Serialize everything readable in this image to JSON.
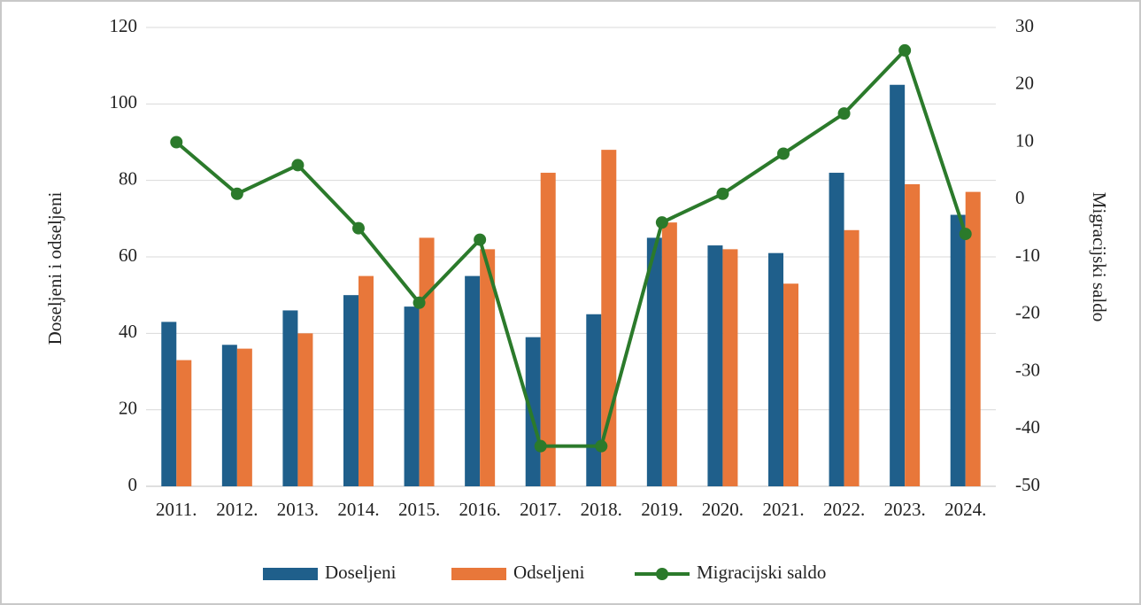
{
  "chart_data": {
    "type": "combo",
    "categories": [
      "2011.",
      "2012.",
      "2013.",
      "2014.",
      "2015.",
      "2016.",
      "2017.",
      "2018.",
      "2019.",
      "2020.",
      "2021.",
      "2022.",
      "2023.",
      "2024."
    ],
    "y_label": "Doseljeni i odseljeni",
    "y2_label": "Migracijski saldo",
    "ylim": [
      0,
      120
    ],
    "yticks": [
      0,
      20,
      40,
      60,
      80,
      100,
      120
    ],
    "y2lim": [
      -50,
      30
    ],
    "y2ticks": [
      -50,
      -40,
      -30,
      -20,
      -10,
      0,
      10,
      20,
      30
    ],
    "grid": true,
    "legend": "bottom",
    "series": [
      {
        "name": "Doseljeni",
        "type": "bar",
        "color": "#1f5f8b",
        "values": [
          43,
          37,
          46,
          50,
          47,
          55,
          39,
          45,
          65,
          63,
          61,
          82,
          105,
          71
        ]
      },
      {
        "name": "Odseljeni",
        "type": "bar",
        "color": "#e8773a",
        "values": [
          33,
          36,
          40,
          55,
          65,
          62,
          82,
          88,
          69,
          62,
          53,
          67,
          79,
          77
        ]
      },
      {
        "name": "Migracijski saldo",
        "type": "line",
        "axis": "y2",
        "color": "#2b7a2b",
        "values": [
          10,
          1,
          6,
          -5,
          -18,
          -7,
          -43,
          -43,
          -4,
          1,
          8,
          15,
          26,
          -6
        ]
      }
    ]
  }
}
